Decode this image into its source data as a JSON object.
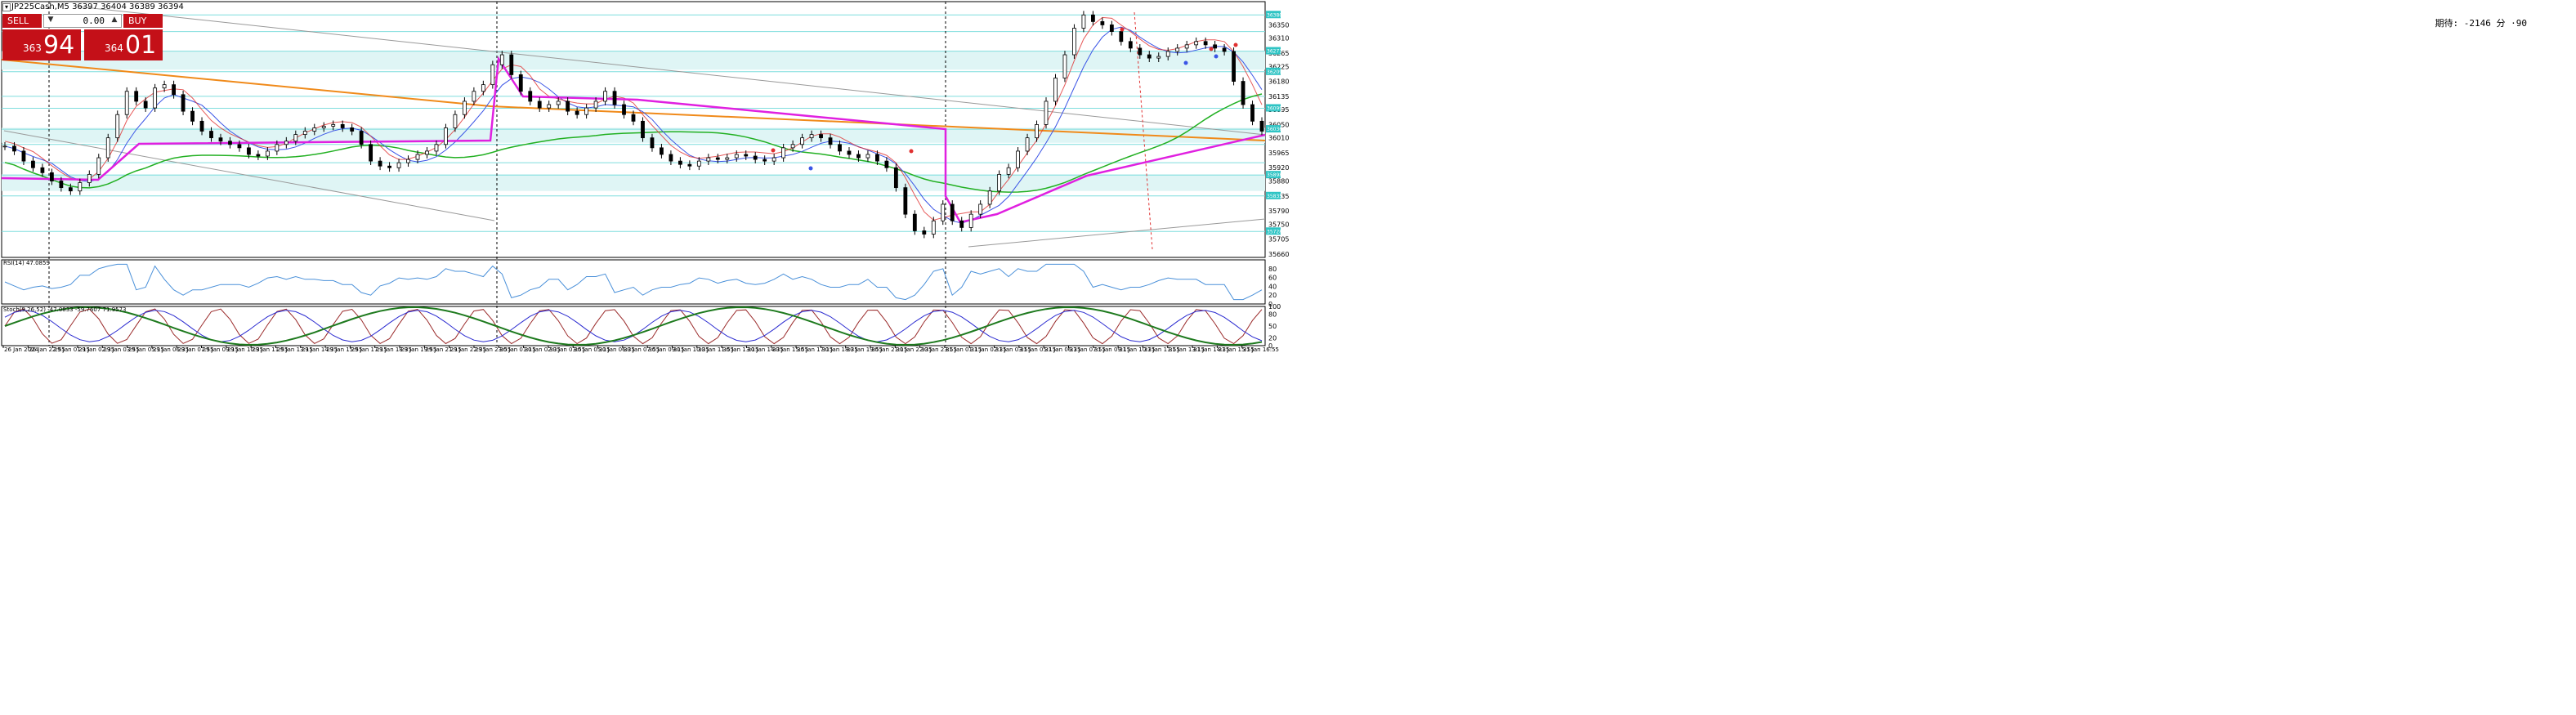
{
  "symbol_line": "JP225Cash,M5  36397 36404 36389 36394",
  "trade_panel": {
    "sell_label": "SELL",
    "buy_label": "BUY",
    "lot_value": "0.00",
    "sell_small": "363",
    "sell_big": "94",
    "buy_small": "364",
    "buy_big": "01"
  },
  "corner_info": "期待: -2146 分 ·90",
  "indicators": {
    "rsi_label": "RSI(14) 47.0859",
    "stoch_label": "Stoch(9,26,52) -47.0833 -59.7607 71.9573"
  },
  "colors": {
    "magenta": "#e020e0",
    "orange": "#f08a1a",
    "green": "#22b022",
    "blue": "#3b55e6",
    "red": "#e03030",
    "zone": "#dff5f5",
    "zone_line": "#7fdede",
    "rsi": "#4a90d9",
    "stoch_main": "#9a2a2a",
    "stoch_signal": "#2a2ad0",
    "stoch_slow": "#1e7a1e"
  },
  "chart_data": {
    "type": "candlestick",
    "price_ticks": [
      "36350",
      "36310",
      "36265",
      "36225",
      "36180",
      "36135",
      "36095",
      "36050",
      "36010",
      "35965",
      "35920",
      "35880",
      "35835",
      "35790",
      "35750",
      "35705",
      "35660"
    ],
    "price_labels_highlight": [
      "36380",
      "36271",
      "36209",
      "36099",
      "36036",
      "35898",
      "35835",
      "35728"
    ],
    "ylim": [
      35650,
      36420
    ],
    "time_labels": [
      "26 Jan 2024",
      "26 Jan 22:55",
      "29 Jan 01:15",
      "29 Jan 02:35",
      "29 Jan 03:55",
      "29 Jan 05:15",
      "29 Jan 06:35",
      "29 Jan 07:55",
      "29 Jan 09:15",
      "29 Jan 10:35",
      "29 Jan 11:55",
      "29 Jan 13:15",
      "29 Jan 14:35",
      "29 Jan 15:55",
      "29 Jan 17:15",
      "29 Jan 18:35",
      "29 Jan 19:55",
      "29 Jan 21:15",
      "29 Jan 22:35",
      "29 Jan 23:55",
      "30 Jan 01:15",
      "30 Jan 02:35",
      "30 Jan 03:55",
      "30 Jan 05:15",
      "30 Jan 06:35",
      "30 Jan 07:55",
      "30 Jan 09:15",
      "30 Jan 10:35",
      "30 Jan 11:55",
      "30 Jan 13:15",
      "30 Jan 14:35",
      "30 Jan 15:55",
      "30 Jan 17:15",
      "30 Jan 18:35",
      "30 Jan 19:55",
      "30 Jan 21:15",
      "30 Jan 22:35",
      "30 Jan 23:55",
      "31 Jan 01:15",
      "31 Jan 02:35",
      "31 Jan 03:55",
      "31 Jan 05:15",
      "31 Jan 06:35",
      "31 Jan 07:55",
      "31 Jan 09:15",
      "31 Jan 10:35",
      "31 Jan 11:55",
      "31 Jan 13:15",
      "31 Jan 14:35",
      "31 Jan 15:55",
      "31 Jan 16:55"
    ],
    "close_path": [
      35985,
      35970,
      35940,
      35920,
      35905,
      35880,
      35860,
      35850,
      35875,
      35900,
      35950,
      36010,
      36080,
      36150,
      36120,
      36100,
      36160,
      36170,
      36140,
      36090,
      36060,
      36030,
      36010,
      36000,
      35990,
      35980,
      35960,
      35955,
      35970,
      35990,
      36000,
      36020,
      36030,
      36040,
      36045,
      36050,
      36040,
      36030,
      35990,
      35940,
      35925,
      35920,
      35935,
      35945,
      35960,
      35970,
      35990,
      36040,
      36080,
      36120,
      36150,
      36170,
      36230,
      36260,
      36200,
      36150,
      36120,
      36100,
      36110,
      36120,
      36090,
      36080,
      36100,
      36120,
      36150,
      36110,
      36080,
      36060,
      36010,
      35980,
      35960,
      35940,
      35930,
      35925,
      35940,
      35950,
      35945,
      35950,
      35960,
      35955,
      35945,
      35940,
      35950,
      35980,
      35990,
      36010,
      36020,
      36010,
      35990,
      35970,
      35960,
      35950,
      35960,
      35940,
      35920,
      35860,
      35780,
      35730,
      35720,
      35760,
      35810,
      35760,
      35740,
      35780,
      35810,
      35850,
      35900,
      35920,
      35970,
      36010,
      36050,
      36120,
      36190,
      36260,
      36340,
      36380,
      36360,
      36350,
      36330,
      36300,
      36280,
      36260,
      36250,
      36255,
      36270,
      36280,
      36290,
      36300,
      36290,
      36280,
      36270,
      36180,
      36110,
      36060,
      36030
    ],
    "rsi_ticks": [
      "80",
      "60",
      "40",
      "20",
      "0"
    ],
    "stoch_ticks": [
      "100",
      "80",
      "50",
      "20",
      "0"
    ]
  }
}
